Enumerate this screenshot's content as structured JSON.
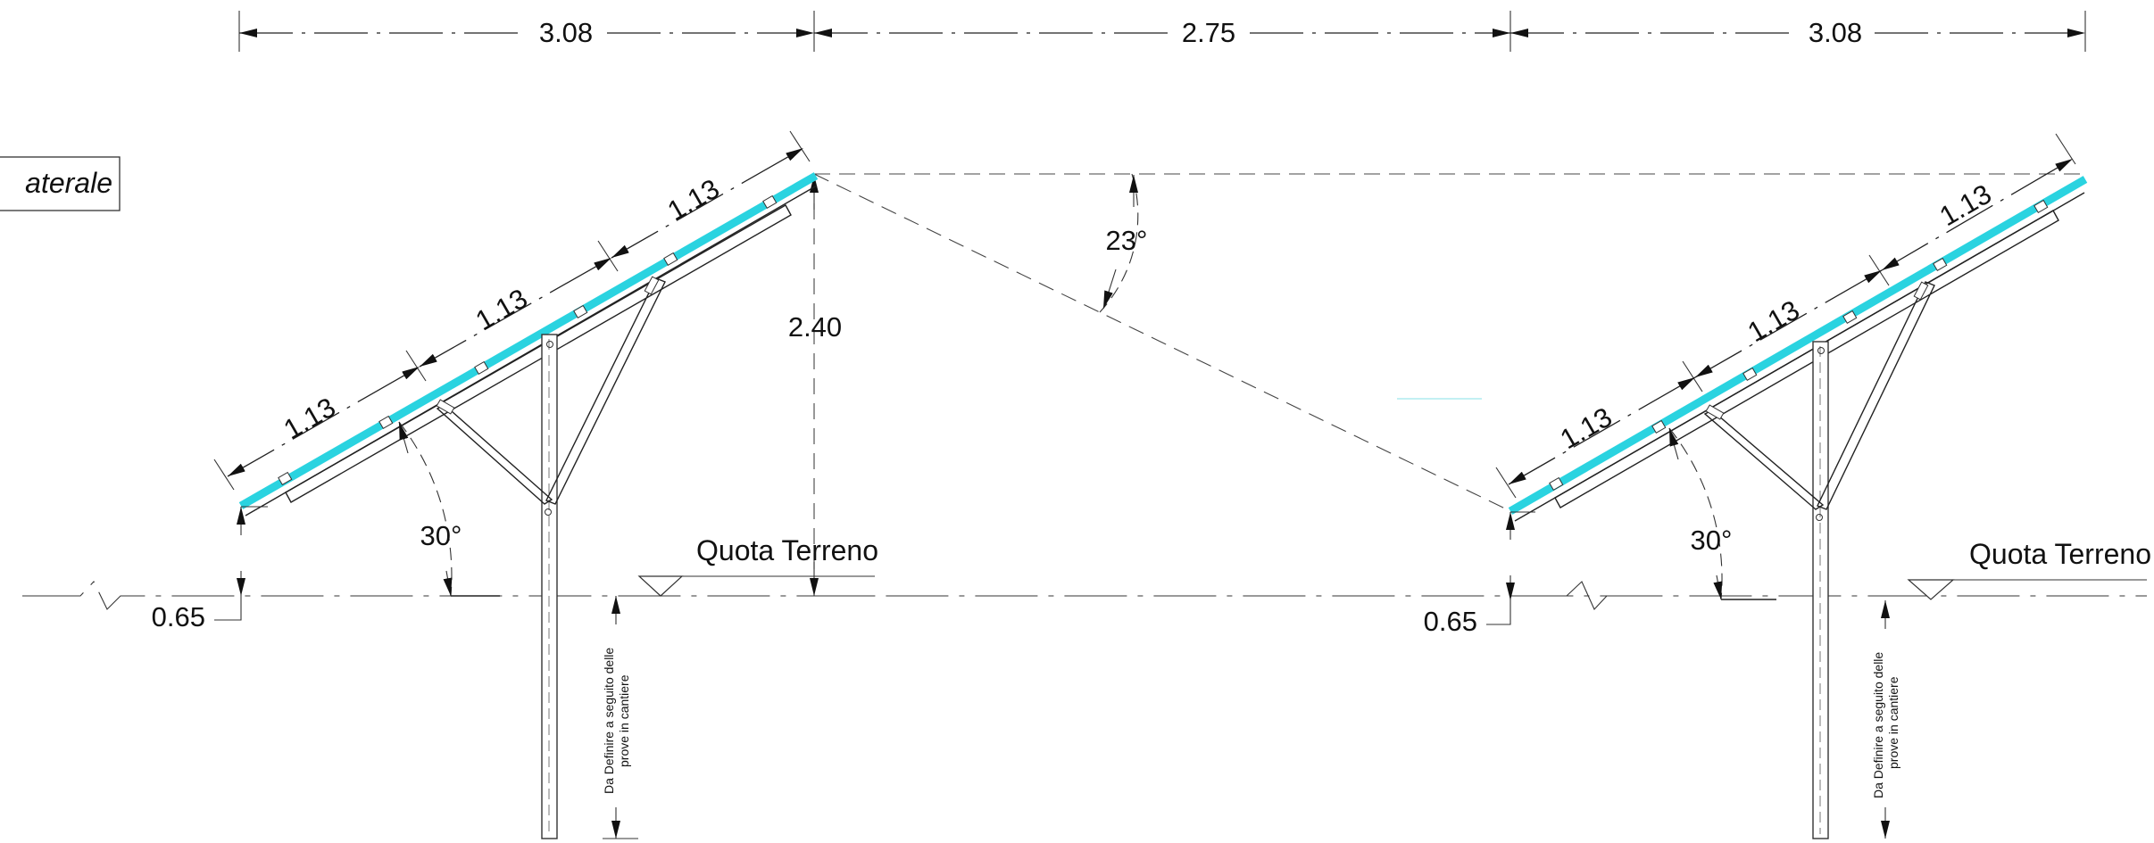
{
  "title": "aterale",
  "dimensions": {
    "top_left": "3.08",
    "top_middle": "2.75",
    "top_right": "3.08",
    "height": "2.40",
    "angle_shadow": "23°",
    "left_segments": [
      "1.13",
      "1.13",
      "1.13"
    ],
    "right_segments": [
      "1.13",
      "1.13",
      "1.13"
    ],
    "left_tilt": "30°",
    "right_tilt": "30°",
    "left_ground_clearance": "0.65",
    "right_ground_clearance": "0.65"
  },
  "labels": {
    "ground_left": "Quota Terreno",
    "ground_right": "Quota Terreno",
    "pile_note_left_1": "Da Definire a seguito delle",
    "pile_note_left_2": "prove in cantiere",
    "pile_note_right_1": "Da Definire a seguito delle",
    "pile_note_right_2": "prove in cantiere"
  },
  "colors": {
    "panel": "#2ad3e0",
    "line": "#222222"
  }
}
